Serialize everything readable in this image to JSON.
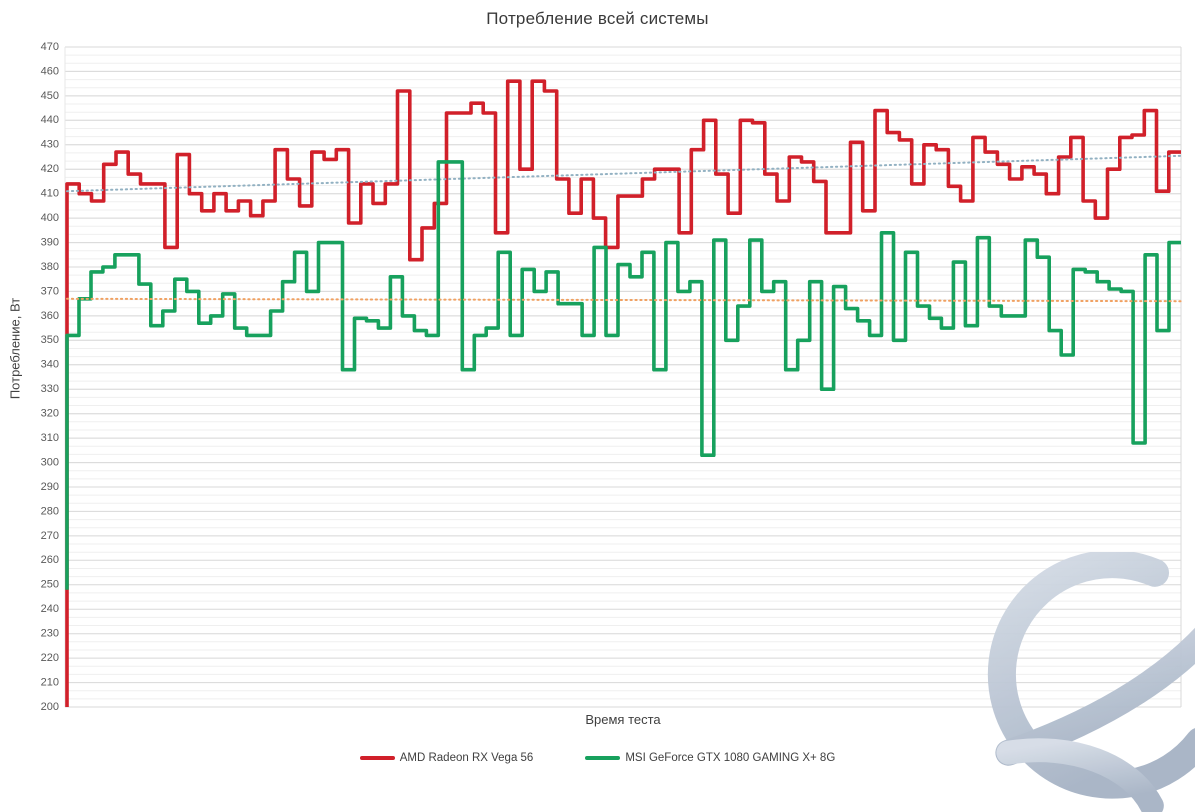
{
  "title": "Потребление всей системы",
  "y_axis": {
    "title": "Потребление, Вт",
    "min": 200,
    "max": 470,
    "tick_step": 10
  },
  "x_axis": {
    "title": "Время теста",
    "tick_labels_visible": false
  },
  "legend": [
    {
      "label": "AMD Radeon RX Vega 56",
      "color": "#d1202a"
    },
    {
      "label": "MSI GeForce GTX 1080 GAMING X+ 8G",
      "color": "#17a15d"
    }
  ],
  "colors": {
    "red_series": "#d1202a",
    "green_series": "#17a15d",
    "red_trendline": "#92b1c2",
    "green_trendline": "#f0a162",
    "major_grid": "#d8d8d8",
    "minor_grid": "#efefef",
    "tick_text": "#595959",
    "watermark": "#b3bfcf"
  },
  "chart_data": {
    "type": "line",
    "line_style": "step",
    "title": "Потребление всей системы",
    "xlabel": "Время теста",
    "ylabel": "Потребление, Вт",
    "ylim": [
      200,
      470
    ],
    "x_unit": "sample index over test time (no x tick labels shown)",
    "grid": true,
    "legend_position": "bottom",
    "series": [
      {
        "name": "AMD Radeon RX Vega 56",
        "color": "#d1202a",
        "values": [
          200,
          414,
          410,
          407,
          422,
          427,
          418,
          414,
          414,
          388,
          426,
          410,
          403,
          410,
          403,
          407,
          401,
          407,
          428,
          416,
          405,
          427,
          424,
          428,
          398,
          414,
          406,
          414,
          452,
          383,
          396,
          406,
          443,
          443,
          447,
          443,
          394,
          456,
          420,
          456,
          452,
          416,
          402,
          416,
          400,
          388,
          409,
          409,
          416,
          420,
          420,
          394,
          428,
          440,
          418,
          402,
          440,
          439,
          418,
          407,
          425,
          423,
          415,
          394,
          394,
          431,
          403,
          444,
          435,
          432,
          414,
          430,
          428,
          413,
          407,
          433,
          427,
          422,
          416,
          421,
          418,
          410,
          425,
          433,
          407,
          400,
          420,
          433,
          434,
          444,
          411,
          427
        ]
      },
      {
        "name": "MSI GeForce GTX 1080 GAMING X+ 8G",
        "color": "#17a15d",
        "values": [
          248,
          352,
          367,
          378,
          380,
          385,
          385,
          373,
          356,
          362,
          375,
          370,
          357,
          360,
          369,
          355,
          352,
          352,
          362,
          374,
          386,
          370,
          390,
          390,
          338,
          359,
          358,
          355,
          376,
          360,
          354,
          352,
          423,
          423,
          338,
          352,
          355,
          386,
          352,
          379,
          370,
          378,
          365,
          365,
          352,
          388,
          352,
          381,
          376,
          386,
          338,
          390,
          370,
          374,
          303,
          391,
          350,
          364,
          391,
          370,
          374,
          338,
          350,
          374,
          330,
          372,
          363,
          358,
          352,
          394,
          350,
          386,
          364,
          359,
          355,
          382,
          356,
          392,
          364,
          360,
          360,
          391,
          384,
          354,
          344,
          379,
          378,
          374,
          371,
          370,
          308,
          385,
          354,
          390
        ]
      }
    ],
    "trendlines": [
      {
        "series": "AMD Radeon RX Vega 56",
        "style": "dotted",
        "color": "#92b1c2",
        "start_value": 411,
        "end_value": 425.5
      },
      {
        "series": "MSI GeForce GTX 1080 GAMING X+ 8G",
        "style": "dotted",
        "color": "#f0a162",
        "start_value": 367,
        "end_value": 366
      }
    ]
  }
}
